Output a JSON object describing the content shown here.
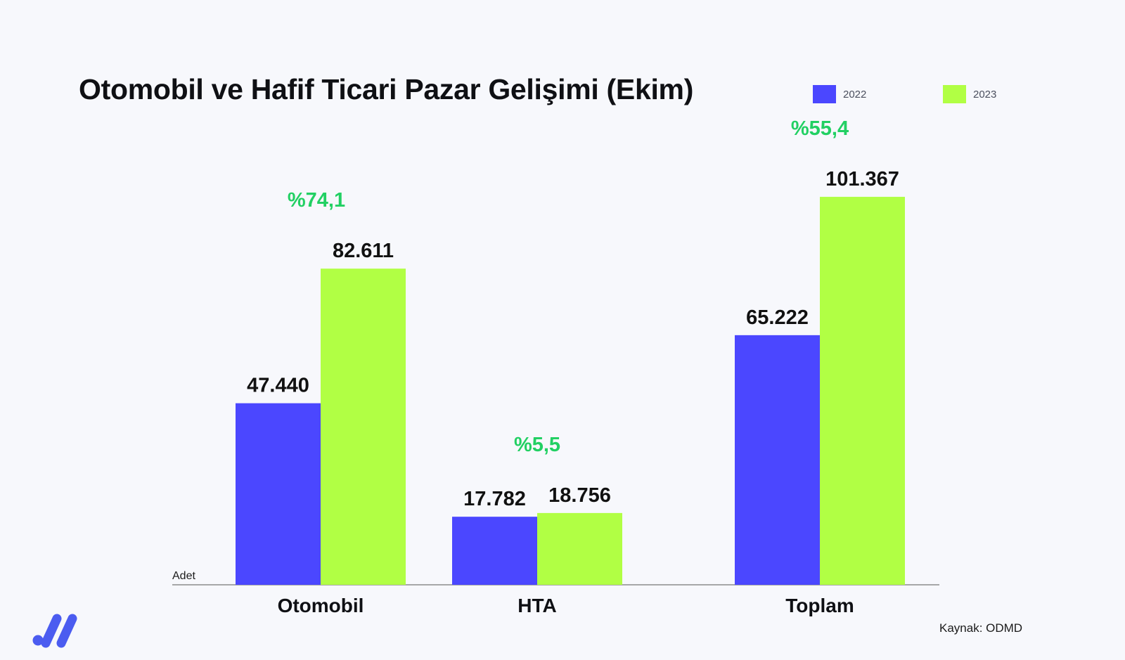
{
  "title": "Otomobil ve Hafif Ticari Pazar Gelişimi (Ekim)",
  "source": "Kaynak: ODMD",
  "colors": {
    "background": "#f7f8fc",
    "series_2022": "#4b47ff",
    "series_2023": "#b1ff44",
    "change_text": "#22d063",
    "axis": "#8c8c8c"
  },
  "chart_data": {
    "type": "bar",
    "title": "Otomobil ve Hafif Ticari Pazar Gelişimi (Ekim)",
    "ylabel": "Adet",
    "xlabel": "",
    "categories": [
      "Otomobil",
      "HTA",
      "Toplam"
    ],
    "series": [
      {
        "name": "2022",
        "color": "#4b47ff",
        "values": [
          47440,
          17782,
          65222
        ],
        "labels": [
          "47.440",
          "17.782",
          "65.222"
        ]
      },
      {
        "name": "2023",
        "color": "#b1ff44",
        "values": [
          82611,
          18756,
          101367
        ],
        "labels": [
          "82.611",
          "18.756",
          "101.367"
        ]
      }
    ],
    "changes": [
      "%74,1",
      "%5,5",
      "%55,4"
    ],
    "ylim": [
      0,
      100000
    ],
    "grid": false,
    "legend": "top-right"
  }
}
